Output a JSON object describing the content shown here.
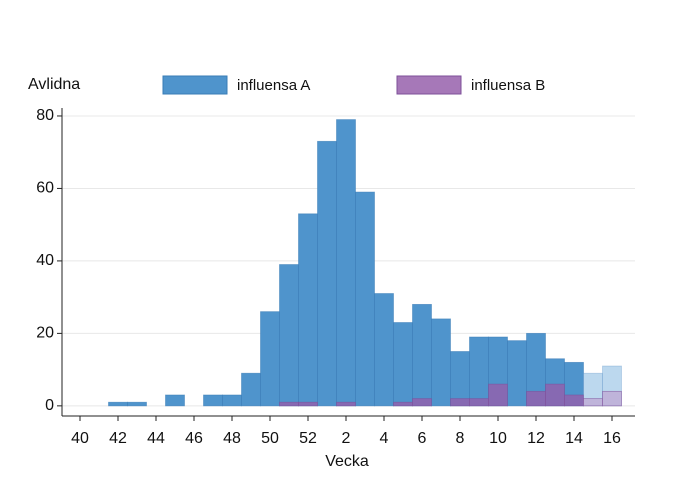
{
  "chart_data": {
    "type": "bar",
    "y_label": "Avlidna",
    "x_label": "Vecka",
    "categories": [
      "40",
      null,
      "42",
      null,
      "44",
      null,
      "46",
      null,
      "48",
      null,
      "50",
      null,
      "52",
      null,
      "2",
      null,
      "4",
      null,
      "6",
      null,
      "8",
      null,
      "10",
      null,
      "12",
      null,
      "14",
      null,
      "16"
    ],
    "series": [
      {
        "name": "influensa A",
        "color": "#4f94cc",
        "values": [
          0,
          0,
          1,
          1,
          0,
          3,
          0,
          3,
          3,
          9,
          26,
          39,
          53,
          73,
          79,
          59,
          31,
          23,
          28,
          24,
          15,
          19,
          19,
          18,
          20,
          13,
          12,
          9,
          11
        ],
        "colors": [
          "#4f94cc",
          "#4f94cc",
          "#4f94cc",
          "#4f94cc",
          "#4f94cc",
          "#4f94cc",
          "#4f94cc",
          "#4f94cc",
          "#4f94cc",
          "#4f94cc",
          "#4f94cc",
          "#4f94cc",
          "#4f94cc",
          "#4f94cc",
          "#4f94cc",
          "#4f94cc",
          "#4f94cc",
          "#4f94cc",
          "#4f94cc",
          "#4f94cc",
          "#4f94cc",
          "#4f94cc",
          "#4f94cc",
          "#4f94cc",
          "#4f94cc",
          "#4f94cc",
          "#4f94cc",
          "#bcd8ee",
          "#bcd8ee"
        ]
      },
      {
        "name": "influensa B",
        "color": "#a678b8",
        "values": [
          0,
          0,
          0,
          0,
          0,
          0,
          0,
          0,
          0,
          0,
          0,
          1,
          1,
          0,
          1,
          0,
          0,
          1,
          2,
          0,
          2,
          2,
          6,
          0,
          4,
          6,
          3,
          2,
          4
        ],
        "colors": [
          "#9161ad",
          "#9161ad",
          "#9161ad",
          "#9161ad",
          "#9161ad",
          "#9161ad",
          "#9161ad",
          "#9161ad",
          "#9161ad",
          "#9161ad",
          "#9161ad",
          "#9161ad",
          "#9161ad",
          "#9161ad",
          "#9161ad",
          "#9161ad",
          "#9161ad",
          "#9161ad",
          "#9161ad",
          "#9161ad",
          "#9161ad",
          "#9161ad",
          "#9161ad",
          "#9161ad",
          "#9161ad",
          "#9161ad",
          "#9161ad",
          "#bfaed6",
          "#bfaed6"
        ]
      }
    ],
    "ylim": [
      -2.8,
      82.2
    ],
    "yticks": [
      0,
      20,
      40,
      60,
      80
    ],
    "grid": true
  }
}
